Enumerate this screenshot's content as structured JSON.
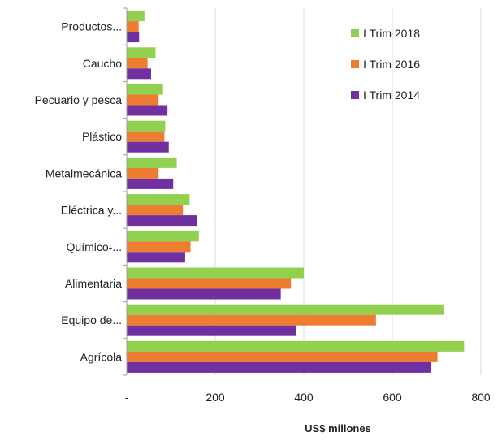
{
  "chart_data": {
    "type": "bar",
    "orientation": "horizontal",
    "categories": [
      "Productos...",
      "Caucho",
      "Pecuario y pesca",
      "Plástico",
      "Metalmecánica",
      "Eléctrica y...",
      "Químico-...",
      "Alimentaria",
      "Equipo de...",
      "Agrícola"
    ],
    "series": [
      {
        "name": "I Trim 2018",
        "color": "#92d050",
        "values": [
          40,
          65,
          82,
          87,
          113,
          142,
          163,
          400,
          717,
          762
        ]
      },
      {
        "name": "I Trim 2016",
        "color": "#ed7d31",
        "values": [
          27,
          47,
          72,
          85,
          72,
          127,
          144,
          371,
          563,
          702
        ]
      },
      {
        "name": "I Trim 2014",
        "color": "#7030a0",
        "values": [
          28,
          55,
          92,
          95,
          105,
          158,
          132,
          348,
          382,
          688
        ]
      }
    ],
    "xlim": [
      0,
      800
    ],
    "xticks": [
      0,
      200,
      400,
      600,
      800
    ],
    "xtick_labels": [
      "-",
      "200",
      "400",
      "600",
      "800"
    ],
    "xlabel": "US$ millones",
    "ylabel": "",
    "grid": true,
    "legend_position": "top-right"
  }
}
